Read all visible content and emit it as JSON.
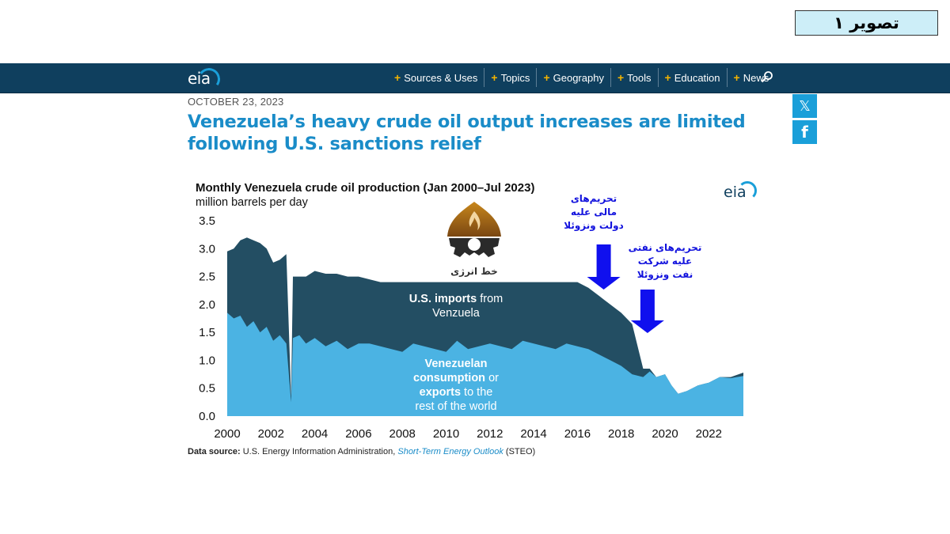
{
  "caption": "تصویر ۱",
  "header": {
    "logo_text": "eia",
    "nav": [
      {
        "label": "Sources & Uses"
      },
      {
        "label": "Topics"
      },
      {
        "label": "Geography"
      },
      {
        "label": "Tools"
      },
      {
        "label": "Education"
      },
      {
        "label": "News"
      }
    ],
    "search_icon": "search-icon"
  },
  "article": {
    "date": "OCTOBER 23, 2023",
    "headline_line1": "Venezuela’s heavy crude oil output increases are limited",
    "headline_line2": "following U.S. sanctions relief"
  },
  "social": {
    "x_glyph": "𝕏",
    "facebook_glyph": "f"
  },
  "watermark": {
    "text": "خط انرژی"
  },
  "annotations": {
    "sanction1_line1": "تحریم‌های",
    "sanction1_line2": "مالی علیه",
    "sanction1_line3": "دولت ونزوئلا",
    "sanction2_line1": "تحریم‌های نفتی",
    "sanction2_line2": "علیه شرکت",
    "sanction2_line3": "نفت ونزوئلا"
  },
  "colors": {
    "navbar": "#0f3f5e",
    "accent": "#1a8cc8",
    "us_imports": "#234e63",
    "consumption": "#4bb3e3",
    "arrow": "#1010ee"
  },
  "source": {
    "label": "Data source:",
    "text": "U.S. Energy Information Administration,",
    "link": "Short-Term Energy Outlook",
    "suffix": "(STEO)"
  },
  "chart_data": {
    "type": "area",
    "title": "Monthly Venezuela crude oil production (Jan 2000–Jul 2023)",
    "subtitle": "million barrels per day",
    "logo": "eia",
    "xlim": [
      2000,
      2023.58
    ],
    "ylim": [
      0,
      3.5
    ],
    "x_ticks": [
      "2000",
      "2002",
      "2004",
      "2006",
      "2008",
      "2010",
      "2012",
      "2014",
      "2016",
      "2018",
      "2020",
      "2022"
    ],
    "y_ticks": [
      "0.0",
      "0.5",
      "1.0",
      "1.5",
      "2.0",
      "2.5",
      "3.0",
      "3.5"
    ],
    "stacked": true,
    "series": [
      {
        "name_lines": [
          "Venezuelan",
          "consumption or",
          "exports to the",
          "rest of the world"
        ],
        "x": [
          2000.0,
          2000.3,
          2000.6,
          2000.9,
          2001.2,
          2001.5,
          2001.8,
          2002.1,
          2002.4,
          2002.7,
          2002.92,
          2003.0,
          2003.3,
          2003.6,
          2004.0,
          2004.5,
          2005.0,
          2005.5,
          2006.0,
          2006.5,
          2007.0,
          2007.5,
          2008.0,
          2008.5,
          2009.0,
          2009.5,
          2010.0,
          2010.5,
          2011.0,
          2011.5,
          2012.0,
          2012.5,
          2013.0,
          2013.5,
          2014.0,
          2014.5,
          2015.0,
          2015.5,
          2016.0,
          2016.5,
          2017.0,
          2017.5,
          2018.0,
          2018.5,
          2019.0,
          2019.3,
          2019.6,
          2020.0,
          2020.3,
          2020.6,
          2021.0,
          2021.5,
          2022.0,
          2022.5,
          2023.0,
          2023.58
        ],
        "values": [
          1.85,
          1.75,
          1.8,
          1.6,
          1.7,
          1.5,
          1.6,
          1.35,
          1.45,
          1.3,
          0.25,
          1.4,
          1.45,
          1.3,
          1.4,
          1.25,
          1.35,
          1.2,
          1.3,
          1.3,
          1.25,
          1.2,
          1.15,
          1.3,
          1.25,
          1.2,
          1.15,
          1.35,
          1.2,
          1.25,
          1.3,
          1.25,
          1.2,
          1.35,
          1.3,
          1.25,
          1.2,
          1.3,
          1.25,
          1.2,
          1.1,
          1.0,
          0.9,
          0.75,
          0.7,
          0.8,
          0.7,
          0.75,
          0.55,
          0.4,
          0.45,
          0.55,
          0.6,
          0.7,
          0.68,
          0.72
        ]
      },
      {
        "name_lines": [
          "U.S. imports from",
          "Venzuela"
        ],
        "x": [
          2000.0,
          2000.3,
          2000.6,
          2000.9,
          2001.2,
          2001.5,
          2001.8,
          2002.1,
          2002.4,
          2002.7,
          2002.92,
          2003.0,
          2003.3,
          2003.6,
          2004.0,
          2004.5,
          2005.0,
          2005.5,
          2006.0,
          2006.5,
          2007.0,
          2007.5,
          2008.0,
          2008.5,
          2009.0,
          2009.5,
          2010.0,
          2010.5,
          2011.0,
          2011.5,
          2012.0,
          2012.5,
          2013.0,
          2013.5,
          2014.0,
          2014.5,
          2015.0,
          2015.5,
          2016.0,
          2016.5,
          2017.0,
          2017.5,
          2018.0,
          2018.5,
          2019.0,
          2019.3,
          2019.6,
          2020.0,
          2020.3,
          2020.6,
          2021.0,
          2021.5,
          2022.0,
          2022.5,
          2023.0,
          2023.58
        ],
        "values": [
          1.1,
          1.25,
          1.35,
          1.6,
          1.45,
          1.6,
          1.4,
          1.4,
          1.35,
          1.6,
          0.1,
          1.1,
          1.05,
          1.2,
          1.2,
          1.3,
          1.2,
          1.3,
          1.2,
          1.15,
          1.15,
          1.2,
          1.25,
          1.1,
          1.15,
          1.2,
          1.25,
          1.05,
          1.2,
          1.15,
          1.1,
          1.15,
          1.2,
          1.05,
          1.1,
          1.15,
          1.2,
          1.1,
          1.15,
          1.1,
          1.05,
          1.0,
          0.95,
          0.9,
          0.15,
          0.05,
          0.0,
          0.0,
          0.0,
          0.0,
          0.0,
          0.0,
          0.0,
          0.0,
          0.02,
          0.06
        ]
      }
    ],
    "annotation_arrows_x": [
      2017.2,
      2019.2
    ]
  }
}
